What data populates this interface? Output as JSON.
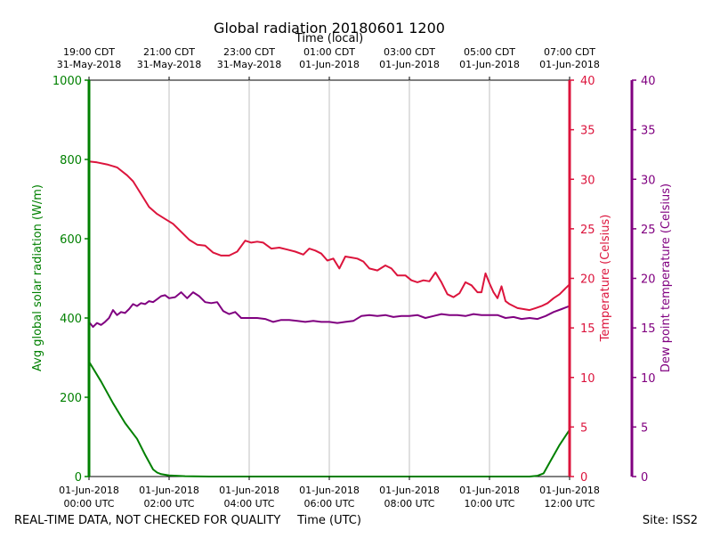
{
  "chart_data": {
    "type": "line",
    "title": "Global radiation 20180601 1200",
    "top_axis_label": "Time (local)",
    "xlabel": "Time (UTC)",
    "footer_left": "REAL-TIME DATA, NOT CHECKED FOR QUALITY",
    "footer_right": "Site: ISS2",
    "xlim": [
      0,
      12
    ],
    "x_ticks": [
      0,
      2,
      4,
      6,
      8,
      10,
      12
    ],
    "bottom_tick_labels": [
      [
        "01-Jun-2018",
        "00:00 UTC"
      ],
      [
        "01-Jun-2018",
        "02:00 UTC"
      ],
      [
        "01-Jun-2018",
        "04:00 UTC"
      ],
      [
        "01-Jun-2018",
        "06:00 UTC"
      ],
      [
        "01-Jun-2018",
        "08:00 UTC"
      ],
      [
        "01-Jun-2018",
        "10:00 UTC"
      ],
      [
        "01-Jun-2018",
        "12:00 UTC"
      ]
    ],
    "top_tick_labels": [
      [
        "19:00 CDT",
        "31-May-2018"
      ],
      [
        "21:00 CDT",
        "31-May-2018"
      ],
      [
        "23:00 CDT",
        "31-May-2018"
      ],
      [
        "01:00 CDT",
        "01-Jun-2018"
      ],
      [
        "03:00 CDT",
        "01-Jun-2018"
      ],
      [
        "05:00 CDT",
        "01-Jun-2018"
      ],
      [
        "07:00 CDT",
        "01-Jun-2018"
      ]
    ],
    "left_axis": {
      "label": "Avg global solar radiation (W/m)",
      "color": "#008000",
      "ylim": [
        0,
        1000
      ],
      "ticks": [
        0,
        200,
        400,
        600,
        800,
        1000
      ]
    },
    "right_axis_1": {
      "label": "Temperature (Celsius)",
      "color": "#dc143c",
      "ylim": [
        0,
        40
      ],
      "ticks": [
        0,
        5,
        10,
        15,
        20,
        25,
        30,
        35,
        40
      ]
    },
    "right_axis_2": {
      "label": "Dew point temperature (Celsius)",
      "color": "#800080",
      "ylim": [
        0,
        40
      ],
      "ticks": [
        0,
        5,
        10,
        15,
        20,
        25,
        30,
        35,
        40
      ]
    },
    "series": [
      {
        "name": "Avg global solar radiation",
        "axis": "left",
        "color": "#008000",
        "x": [
          0,
          0.3,
          0.6,
          0.9,
          1.2,
          1.4,
          1.6,
          1.7,
          1.8,
          2.0,
          2.4,
          3,
          4,
          5,
          6,
          7,
          8,
          9,
          10,
          10.5,
          11,
          11.2,
          11.35,
          11.5,
          11.75,
          12
        ],
        "values": [
          290,
          240,
          185,
          135,
          95,
          55,
          18,
          10,
          6,
          3,
          1,
          0,
          0,
          0,
          0,
          0,
          0,
          0,
          0,
          0,
          0,
          2,
          8,
          35,
          80,
          118
        ]
      },
      {
        "name": "Temperature",
        "axis": "right_1",
        "color": "#dc143c",
        "x": [
          0,
          0.2,
          0.45,
          0.7,
          0.95,
          1.1,
          1.3,
          1.5,
          1.7,
          1.9,
          2.1,
          2.3,
          2.5,
          2.7,
          2.9,
          3.1,
          3.3,
          3.5,
          3.7,
          3.9,
          4.05,
          4.2,
          4.35,
          4.55,
          4.75,
          4.95,
          5.15,
          5.35,
          5.5,
          5.65,
          5.8,
          5.95,
          6.1,
          6.25,
          6.4,
          6.55,
          6.7,
          6.85,
          7.0,
          7.2,
          7.4,
          7.55,
          7.7,
          7.9,
          8.05,
          8.2,
          8.35,
          8.5,
          8.65,
          8.8,
          8.95,
          9.1,
          9.25,
          9.4,
          9.55,
          9.7,
          9.8,
          9.9,
          10.0,
          10.1,
          10.2,
          10.3,
          10.4,
          10.5,
          10.6,
          10.7,
          10.85,
          11.0,
          11.15,
          11.3,
          11.45,
          11.6,
          11.75,
          11.9,
          12
        ],
        "values": [
          31.8,
          31.7,
          31.5,
          31.2,
          30.4,
          29.8,
          28.5,
          27.2,
          26.5,
          26.0,
          25.5,
          24.7,
          23.9,
          23.4,
          23.3,
          22.6,
          22.3,
          22.3,
          22.7,
          23.8,
          23.6,
          23.7,
          23.6,
          23.0,
          23.1,
          22.9,
          22.7,
          22.4,
          23.0,
          22.8,
          22.5,
          21.8,
          22.0,
          21.0,
          22.2,
          22.1,
          22.0,
          21.7,
          21.0,
          20.8,
          21.3,
          21.0,
          20.3,
          20.3,
          19.8,
          19.6,
          19.8,
          19.7,
          20.6,
          19.6,
          18.4,
          18.1,
          18.5,
          19.6,
          19.3,
          18.6,
          18.6,
          20.5,
          19.5,
          18.6,
          18.0,
          19.2,
          17.7,
          17.4,
          17.2,
          17.0,
          16.9,
          16.8,
          17.0,
          17.2,
          17.5,
          18.0,
          18.4,
          19.0,
          19.4
        ]
      },
      {
        "name": "Dew point temperature",
        "axis": "right_2",
        "color": "#800080",
        "x": [
          0,
          0.1,
          0.2,
          0.3,
          0.4,
          0.5,
          0.6,
          0.7,
          0.8,
          0.9,
          1.0,
          1.1,
          1.2,
          1.3,
          1.4,
          1.5,
          1.6,
          1.7,
          1.8,
          1.9,
          2.0,
          2.15,
          2.3,
          2.45,
          2.6,
          2.75,
          2.9,
          3.05,
          3.2,
          3.35,
          3.5,
          3.65,
          3.8,
          4.0,
          4.2,
          4.4,
          4.6,
          4.8,
          5.0,
          5.2,
          5.4,
          5.6,
          5.8,
          6.0,
          6.2,
          6.4,
          6.6,
          6.8,
          7.0,
          7.2,
          7.4,
          7.6,
          7.8,
          8.0,
          8.2,
          8.4,
          8.6,
          8.8,
          9.0,
          9.2,
          9.4,
          9.6,
          9.8,
          10.0,
          10.2,
          10.4,
          10.6,
          10.8,
          11.0,
          11.2,
          11.4,
          11.6,
          11.8,
          12
        ],
        "values": [
          15.6,
          15.1,
          15.5,
          15.3,
          15.6,
          16.0,
          16.8,
          16.3,
          16.6,
          16.5,
          16.9,
          17.4,
          17.2,
          17.5,
          17.4,
          17.7,
          17.6,
          17.9,
          18.2,
          18.3,
          18.0,
          18.1,
          18.6,
          18.0,
          18.6,
          18.2,
          17.6,
          17.5,
          17.6,
          16.7,
          16.4,
          16.6,
          16.0,
          16.0,
          16.0,
          15.9,
          15.6,
          15.8,
          15.8,
          15.7,
          15.6,
          15.7,
          15.6,
          15.6,
          15.5,
          15.6,
          15.7,
          16.2,
          16.3,
          16.2,
          16.3,
          16.1,
          16.2,
          16.2,
          16.3,
          16.0,
          16.2,
          16.4,
          16.3,
          16.3,
          16.2,
          16.4,
          16.3,
          16.3,
          16.3,
          16.0,
          16.1,
          15.9,
          16.0,
          15.9,
          16.2,
          16.6,
          16.9,
          17.2
        ]
      }
    ]
  }
}
